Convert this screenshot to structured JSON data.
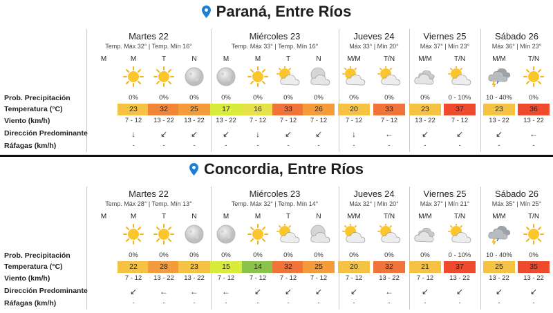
{
  "labels": {
    "prob": "Prob. Precipitación",
    "temp": "Temperatura (°C)",
    "wind": "Viento (km/h)",
    "dir": "Dirección Predominante",
    "gust": "Ráfagas (km/h)"
  },
  "cities": [
    {
      "name": "Paraná, Entre Ríos",
      "days": [
        {
          "name": "Martes 22",
          "sub": "Temp. Máx 32° | Temp. Mín 16°",
          "periods": [
            "M",
            "M",
            "T",
            "N"
          ]
        },
        {
          "name": "Miércoles 23",
          "sub": "Temp. Máx 33° | Temp. Mín 16°",
          "periods": [
            "M",
            "M",
            "T",
            "N"
          ]
        },
        {
          "name": "Jueves 24",
          "sub": "Máx 33° | Mín 20°",
          "periods": [
            "M/M",
            "T/N"
          ]
        },
        {
          "name": "Viernes 25",
          "sub": "Máx 37° | Mín 23°",
          "periods": [
            "M/M",
            "T/N"
          ]
        },
        {
          "name": "Sábado 26",
          "sub": "Máx 36° | Mín 23°",
          "periods": [
            "M/M",
            "T/N"
          ]
        }
      ],
      "cols": [
        {
          "icon": "sun-icon",
          "prob": "0%",
          "temp": "23",
          "color": "#f6c244",
          "wind": "7 - 12",
          "dir": "↓",
          "gust": "-"
        },
        {
          "icon": "sun-icon",
          "prob": "0%",
          "temp": "32",
          "color": "#f1853a",
          "wind": "13 - 22",
          "dir": "↙",
          "gust": "-"
        },
        {
          "icon": "moon-icon",
          "prob": "0%",
          "temp": "25",
          "color": "#f49c3c",
          "wind": "13 - 22",
          "dir": "↙",
          "gust": "-"
        },
        {
          "icon": "moon-icon",
          "prob": "0%",
          "temp": "17",
          "color": "#d9ec3c",
          "wind": "13 - 22",
          "dir": "↙",
          "gust": "-"
        },
        {
          "icon": "sun-icon",
          "prob": "0%",
          "temp": "16",
          "color": "#e8e24a",
          "wind": "7 - 12",
          "dir": "↓",
          "gust": "-"
        },
        {
          "icon": "sun-cloud-icon",
          "prob": "0%",
          "temp": "33",
          "color": "#f1733a",
          "wind": "7 - 12",
          "dir": "↙",
          "gust": "-"
        },
        {
          "icon": "moon-cloud-icon",
          "prob": "0%",
          "temp": "26",
          "color": "#f49c3c",
          "wind": "7 - 12",
          "dir": "↙",
          "gust": "-"
        },
        {
          "icon": "sun-cloud-icon",
          "prob": "0%",
          "temp": "20",
          "color": "#f6c244",
          "wind": "7 - 12",
          "dir": "↓",
          "gust": "-"
        },
        {
          "icon": "sun-cloud-icon",
          "prob": "0%",
          "temp": "33",
          "color": "#f1733a",
          "wind": "7 - 12",
          "dir": "←",
          "gust": "-"
        },
        {
          "icon": "cloud-icon",
          "prob": "0%",
          "temp": "23",
          "color": "#f6c244",
          "wind": "13 - 22",
          "dir": "↙",
          "gust": "-"
        },
        {
          "icon": "sun-cloud-icon",
          "prob": "0 - 10%",
          "temp": "37",
          "color": "#ef4a2e",
          "wind": "7 - 12",
          "dir": "↙",
          "gust": "-"
        },
        {
          "icon": "storm-icon",
          "prob": "10 - 40%",
          "temp": "23",
          "color": "#f6c244",
          "wind": "13 - 22",
          "dir": "↙",
          "gust": "-"
        },
        {
          "icon": "sun-icon",
          "prob": "0%",
          "temp": "36",
          "color": "#ef4a2e",
          "wind": "13 - 22",
          "dir": "←",
          "gust": "-"
        }
      ]
    },
    {
      "name": "Concordia, Entre Ríos",
      "days": [
        {
          "name": "Martes 22",
          "sub": "Temp. Máx 28° | Temp. Mín 13°",
          "periods": [
            "M",
            "M",
            "T",
            "N"
          ]
        },
        {
          "name": "Miércoles 23",
          "sub": "Temp. Máx 32° | Temp. Mín 14°",
          "periods": [
            "M",
            "M",
            "T",
            "N"
          ]
        },
        {
          "name": "Jueves 24",
          "sub": "Máx 32° | Mín 20°",
          "periods": [
            "M/M",
            "T/N"
          ]
        },
        {
          "name": "Viernes 25",
          "sub": "Máx 37° | Mín 21°",
          "periods": [
            "M/M",
            "T/N"
          ]
        },
        {
          "name": "Sábado 26",
          "sub": "Máx 35° | Mín 25°",
          "periods": [
            "M/M",
            "T/N"
          ]
        }
      ],
      "cols": [
        {
          "icon": "sun-icon",
          "prob": "0%",
          "temp": "22",
          "color": "#f6c244",
          "wind": "7 - 12",
          "dir": "↙",
          "gust": "-"
        },
        {
          "icon": "sun-icon",
          "prob": "0%",
          "temp": "28",
          "color": "#f49c3c",
          "wind": "13 - 22",
          "dir": "←",
          "gust": "-"
        },
        {
          "icon": "moon-icon",
          "prob": "0%",
          "temp": "23",
          "color": "#f6c244",
          "wind": "13 - 22",
          "dir": "←",
          "gust": "-"
        },
        {
          "icon": "moon-icon",
          "prob": "0%",
          "temp": "15",
          "color": "#d9ec3c",
          "wind": "7 - 12",
          "dir": "←",
          "gust": "-"
        },
        {
          "icon": "sun-icon",
          "prob": "0%",
          "temp": "14",
          "color": "#8bc34a",
          "wind": "7 - 12",
          "dir": "↙",
          "gust": "-"
        },
        {
          "icon": "sun-cloud-icon",
          "prob": "0%",
          "temp": "32",
          "color": "#f1733a",
          "wind": "7 - 12",
          "dir": "↙",
          "gust": "-"
        },
        {
          "icon": "moon-cloud-icon",
          "prob": "0%",
          "temp": "25",
          "color": "#f49c3c",
          "wind": "7 - 12",
          "dir": "↙",
          "gust": "-"
        },
        {
          "icon": "sun-cloud-icon",
          "prob": "0%",
          "temp": "20",
          "color": "#f6c244",
          "wind": "7 - 12",
          "dir": "↙",
          "gust": "-"
        },
        {
          "icon": "sun-cloud-icon",
          "prob": "0%",
          "temp": "32",
          "color": "#f1733a",
          "wind": "13 - 22",
          "dir": "←",
          "gust": "-"
        },
        {
          "icon": "cloud-icon",
          "prob": "0%",
          "temp": "21",
          "color": "#f6c244",
          "wind": "7 - 12",
          "dir": "↙",
          "gust": "-"
        },
        {
          "icon": "sun-cloud-icon",
          "prob": "0 - 10%",
          "temp": "37",
          "color": "#ef4a2e",
          "wind": "13 - 22",
          "dir": "↙",
          "gust": "-"
        },
        {
          "icon": "storm-icon",
          "prob": "10 - 40%",
          "temp": "25",
          "color": "#f6c244",
          "wind": "13 - 22",
          "dir": "↙",
          "gust": "-"
        },
        {
          "icon": "sun-icon",
          "prob": "0%",
          "temp": "35",
          "color": "#ef4a2e",
          "wind": "13 - 22",
          "dir": "↙",
          "gust": "-"
        }
      ]
    }
  ]
}
